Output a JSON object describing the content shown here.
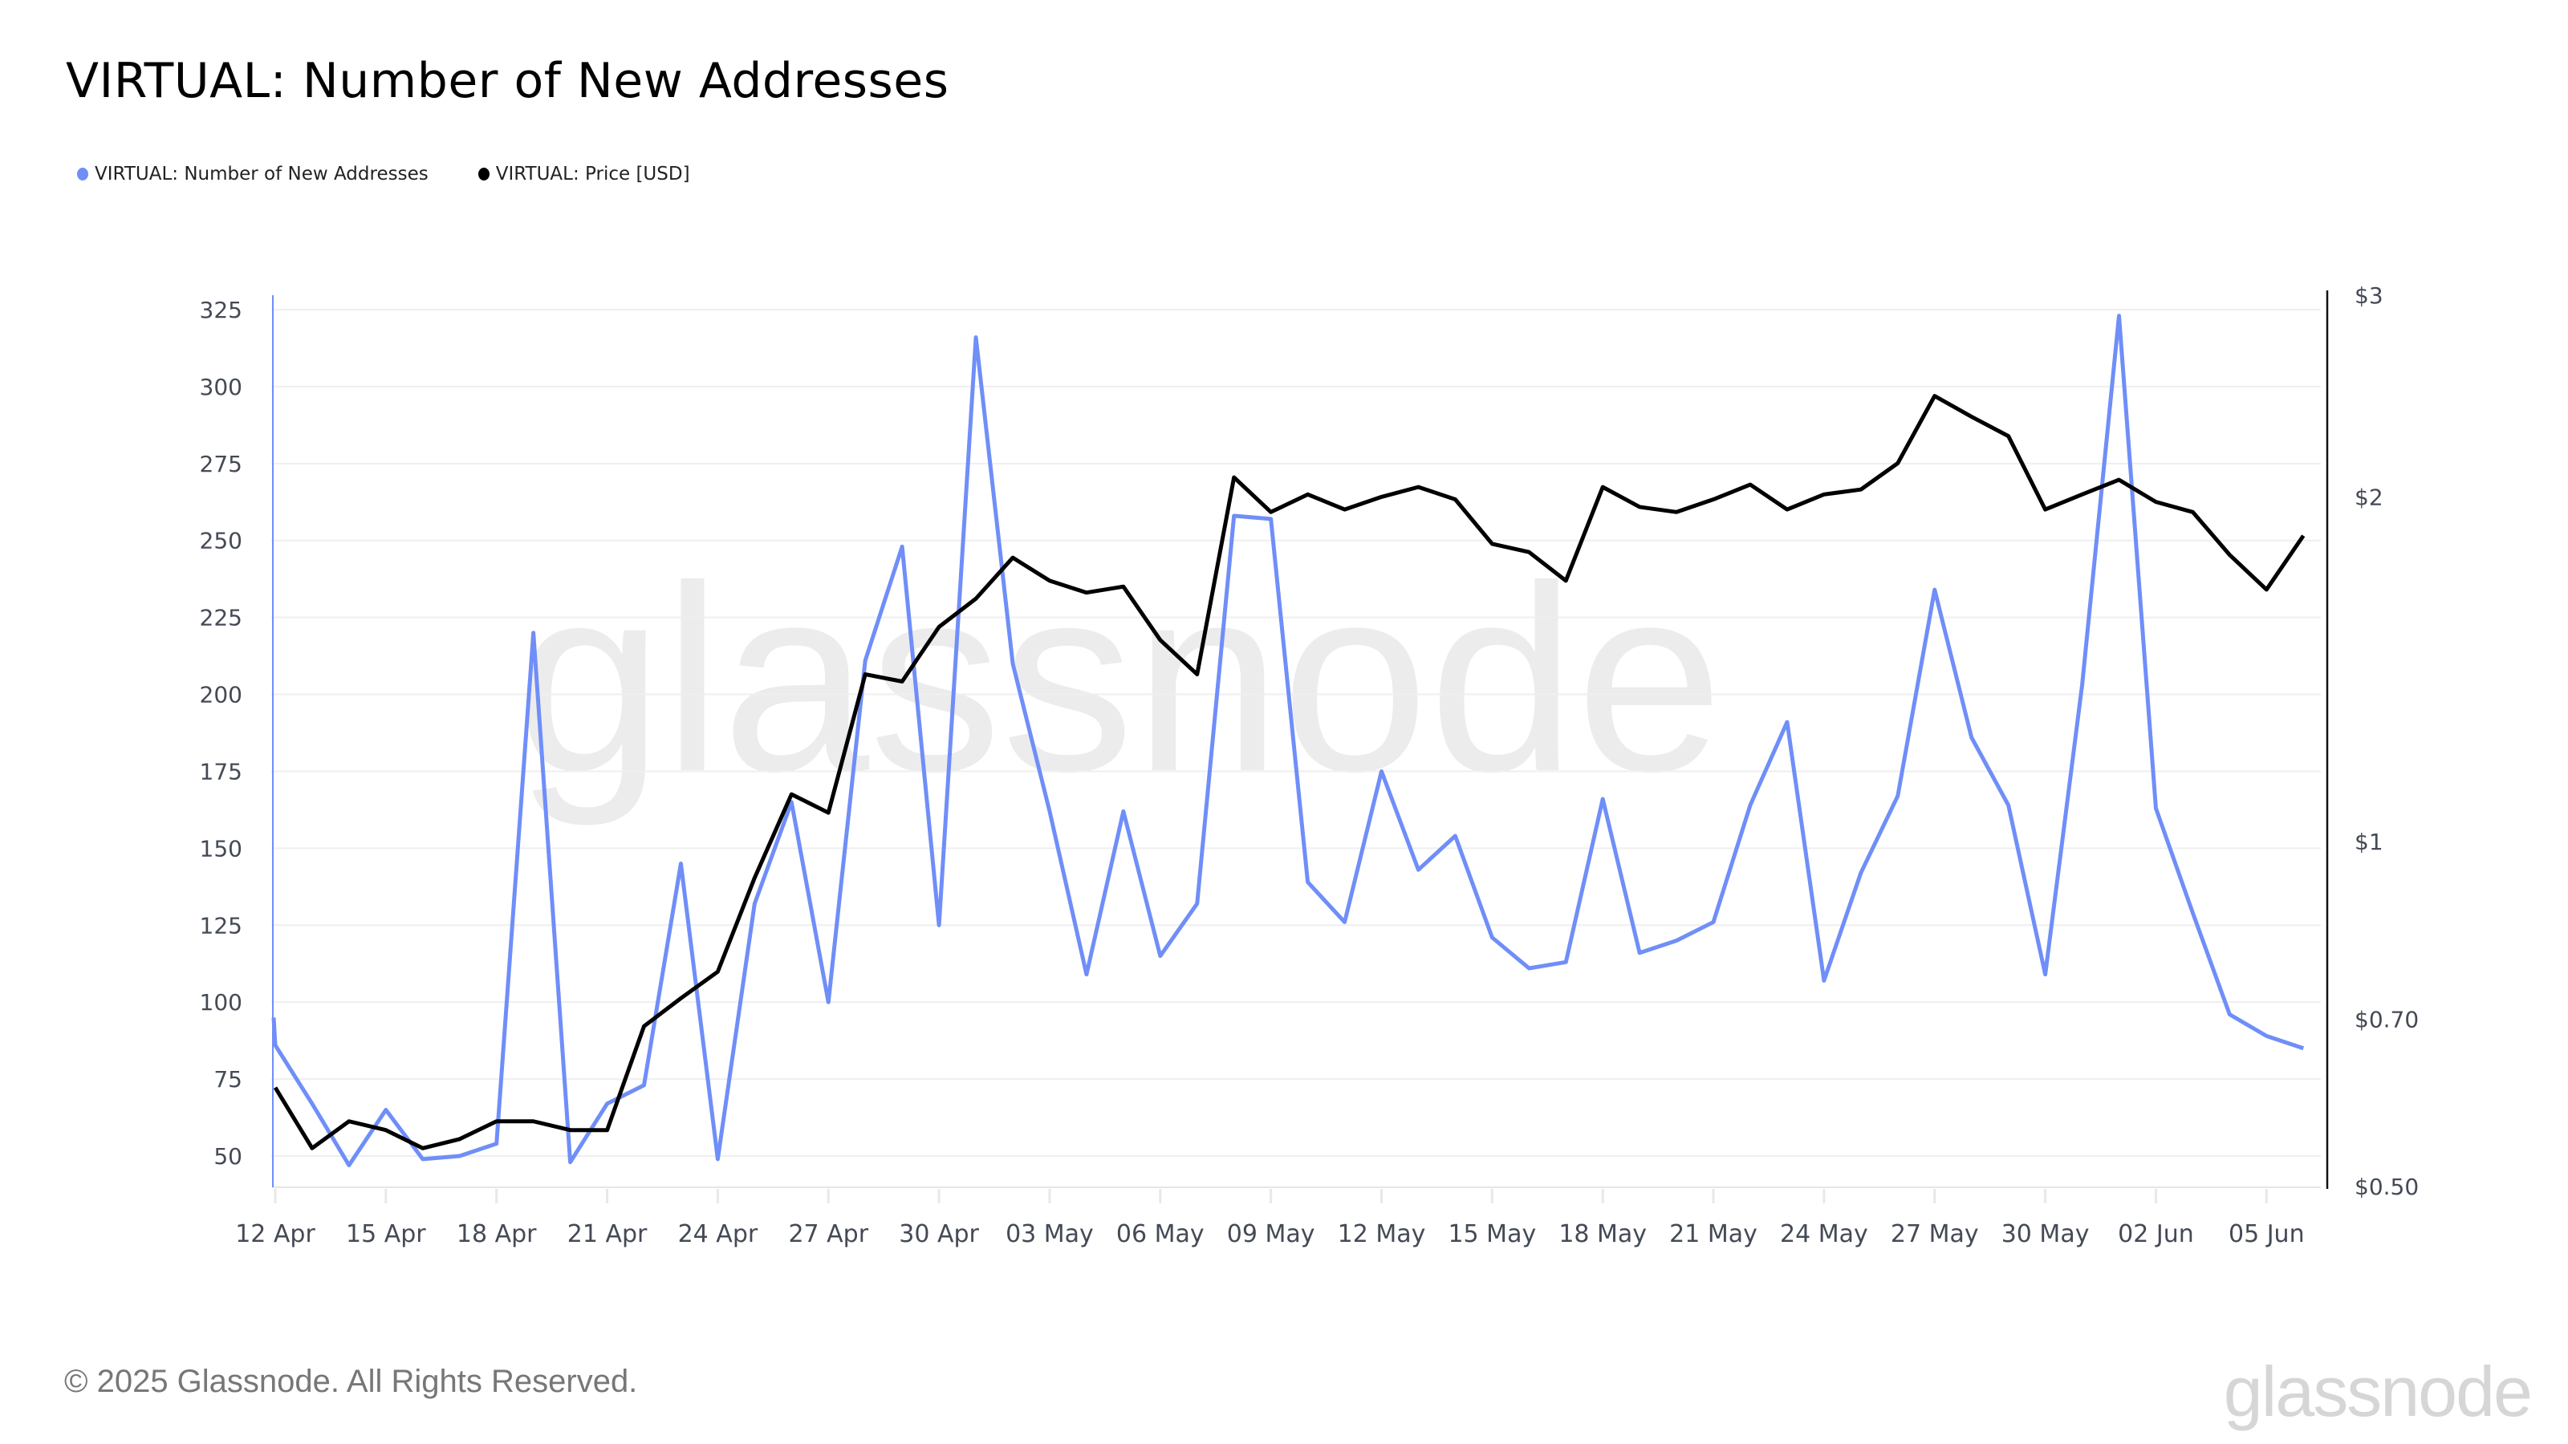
{
  "header": {
    "title": "VIRTUAL: Number of New Addresses"
  },
  "legend": [
    {
      "label": "VIRTUAL: Number of New Addresses",
      "color": "#6f8ef8"
    },
    {
      "label": "VIRTUAL: Price [USD]",
      "color": "#000000"
    }
  ],
  "footer": {
    "copyright": "© 2025 Glassnode. All Rights Reserved.",
    "brand": "glassnode"
  },
  "watermark": "glassnode",
  "chart_data": {
    "type": "line",
    "title": "VIRTUAL: Number of New Addresses",
    "xlabel": "",
    "ylabel": "",
    "grid": true,
    "legend_position": "top-left",
    "x_tick_labels": [
      "12 Apr",
      "15 Apr",
      "18 Apr",
      "21 Apr",
      "24 Apr",
      "27 Apr",
      "30 Apr",
      "03 May",
      "06 May",
      "09 May",
      "12 May",
      "15 May",
      "18 May",
      "21 May",
      "24 May",
      "27 May",
      "30 May",
      "02 Jun",
      "05 Jun"
    ],
    "x": [
      "12 Apr",
      "13 Apr",
      "14 Apr",
      "15 Apr",
      "16 Apr",
      "17 Apr",
      "18 Apr",
      "19 Apr",
      "20 Apr",
      "21 Apr",
      "22 Apr",
      "23 Apr",
      "24 Apr",
      "25 Apr",
      "26 Apr",
      "27 Apr",
      "28 Apr",
      "29 Apr",
      "30 Apr",
      "01 May",
      "02 May",
      "03 May",
      "04 May",
      "05 May",
      "06 May",
      "07 May",
      "08 May",
      "09 May",
      "10 May",
      "11 May",
      "12 May",
      "13 May",
      "14 May",
      "15 May",
      "16 May",
      "17 May",
      "18 May",
      "19 May",
      "20 May",
      "21 May",
      "22 May",
      "23 May",
      "24 May",
      "25 May",
      "26 May",
      "27 May",
      "28 May",
      "29 May",
      "30 May",
      "31 May",
      "01 Jun",
      "02 Jun",
      "03 Jun",
      "04 Jun",
      "05 Jun",
      "06 Jun"
    ],
    "left_axis": {
      "ticks": [
        50,
        75,
        100,
        125,
        150,
        175,
        200,
        225,
        250,
        275,
        300,
        325
      ],
      "ylim": [
        40,
        330
      ],
      "scale": "linear"
    },
    "right_axis": {
      "ticks": [
        {
          "value": 3,
          "label": "$3"
        },
        {
          "value": 2,
          "label": "$2"
        },
        {
          "value": 1,
          "label": "$1"
        },
        {
          "value": 0.7,
          "label": "$0.70"
        },
        {
          "value": 0.5,
          "label": "$0.50"
        }
      ],
      "ylim": [
        0.5,
        3
      ],
      "scale": "log"
    },
    "series": [
      {
        "name": "VIRTUAL: Number of New Addresses",
        "axis": "left",
        "color": "#6f8ef8",
        "values": [
          86,
          67,
          47,
          65,
          49,
          50,
          54,
          220,
          48,
          67,
          73,
          145,
          49,
          132,
          165,
          100,
          211,
          248,
          125,
          316,
          210,
          162,
          109,
          162,
          115,
          132,
          258,
          257,
          139,
          126,
          175,
          143,
          154,
          121,
          111,
          113,
          166,
          116,
          120,
          126,
          164,
          191,
          107,
          142,
          167,
          234,
          186,
          164,
          109,
          203,
          323,
          163,
          129,
          96,
          89,
          85
        ]
      },
      {
        "name": "VIRTUAL: Price [USD]",
        "axis": "right",
        "color": "#000000",
        "values": [
          0.61,
          0.54,
          0.57,
          0.56,
          0.54,
          0.55,
          0.57,
          0.57,
          0.56,
          0.56,
          0.69,
          0.73,
          0.77,
          0.93,
          1.1,
          1.06,
          1.4,
          1.38,
          1.54,
          1.63,
          1.77,
          1.69,
          1.65,
          1.67,
          1.5,
          1.4,
          2.08,
          1.94,
          2.01,
          1.95,
          2.0,
          2.04,
          1.99,
          1.82,
          1.79,
          1.69,
          2.04,
          1.96,
          1.94,
          1.99,
          2.05,
          1.95,
          2.01,
          2.03,
          2.14,
          2.45,
          2.35,
          2.26,
          1.95,
          2.01,
          2.07,
          1.98,
          1.94,
          1.78,
          1.66,
          1.85
        ]
      }
    ]
  }
}
